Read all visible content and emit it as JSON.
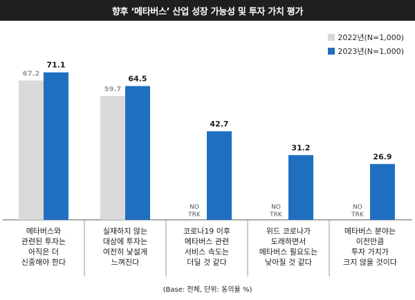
{
  "title": "향후 ‘메타버스’ 산업 성장 가능성 및 투자 가치 평가",
  "footer": "(Base: 전체, 단위: 동의율 %)",
  "colors": {
    "series_2022": "#d9d9d9",
    "series_2023": "#1e6fc0"
  },
  "chart_data": {
    "type": "bar",
    "categories": [
      [
        "메타버스와",
        "관련된 투자는",
        "아직은 더",
        "신중해야 한다"
      ],
      [
        "실재하지 않는",
        "대상에 투자는",
        "여전히 낯설게",
        "느껴진다"
      ],
      [
        "코로나19 이후",
        "메타버스 관련",
        "서비스 속도는",
        "더딜 것 같다"
      ],
      [
        "위드 코로나가",
        "도래하면서",
        "메타버스 필요도는",
        "낮아질 것 같다"
      ],
      [
        "메타버스 분야는",
        "이전만큼",
        "투자 가치가",
        "크지 않을 것이다"
      ]
    ],
    "series": [
      {
        "name": "2022년(N=1,000)",
        "values": [
          67.2,
          59.7,
          null,
          null,
          null
        ],
        "labels": [
          "67.2",
          "59.7",
          "NO TRK",
          "NO TRK",
          "NO TRK"
        ]
      },
      {
        "name": "2023년(N=1,000)",
        "values": [
          71.1,
          64.5,
          42.7,
          31.2,
          26.9
        ],
        "labels": [
          "71.1",
          "64.5",
          "42.7",
          "31.2",
          "26.9"
        ]
      }
    ],
    "ylim": [
      0,
      100
    ],
    "grid": false,
    "legend": "top-right"
  }
}
